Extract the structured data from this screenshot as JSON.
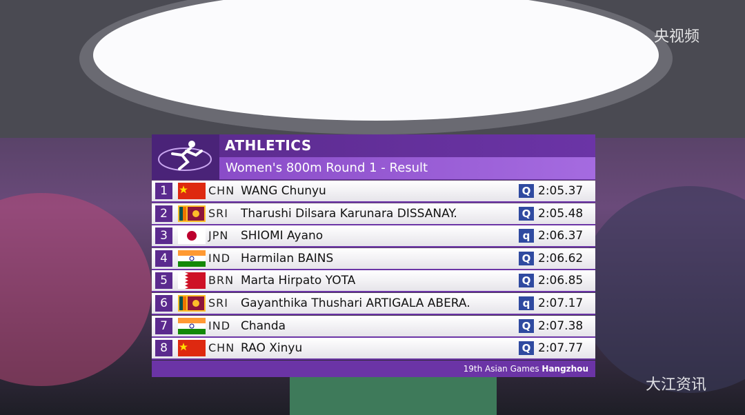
{
  "header": {
    "sport": "ATHLETICS",
    "event": "Women's 800m Round 1 - Result"
  },
  "table": {
    "rows": [
      [
        "1",
        "CHN",
        "WANG Chunyu",
        "Q",
        "2:05.37"
      ],
      [
        "2",
        "SRI",
        "Tharushi Dilsara Karunara DISSANAY.",
        "Q",
        "2:05.48"
      ],
      [
        "3",
        "JPN",
        "SHIOMI Ayano",
        "q",
        "2:06.37"
      ],
      [
        "4",
        "IND",
        "Harmilan BAINS",
        "Q",
        "2:06.62"
      ],
      [
        "5",
        "BRN",
        "Marta Hirpato YOTA",
        "Q",
        "2:06.85"
      ],
      [
        "6",
        "SRI",
        "Gayanthika Thushari ARTIGALA ABERA.",
        "q",
        "2:07.17"
      ],
      [
        "7",
        "IND",
        "Chanda",
        "Q",
        "2:07.38"
      ],
      [
        "8",
        "CHN",
        "RAO Xinyu",
        "Q",
        "2:07.77"
      ]
    ]
  },
  "footer": {
    "games": "19th Asian Games",
    "city": "Hangzhou"
  },
  "watermarks": {
    "broadcaster": "央视频",
    "source": "大江资讯"
  }
}
